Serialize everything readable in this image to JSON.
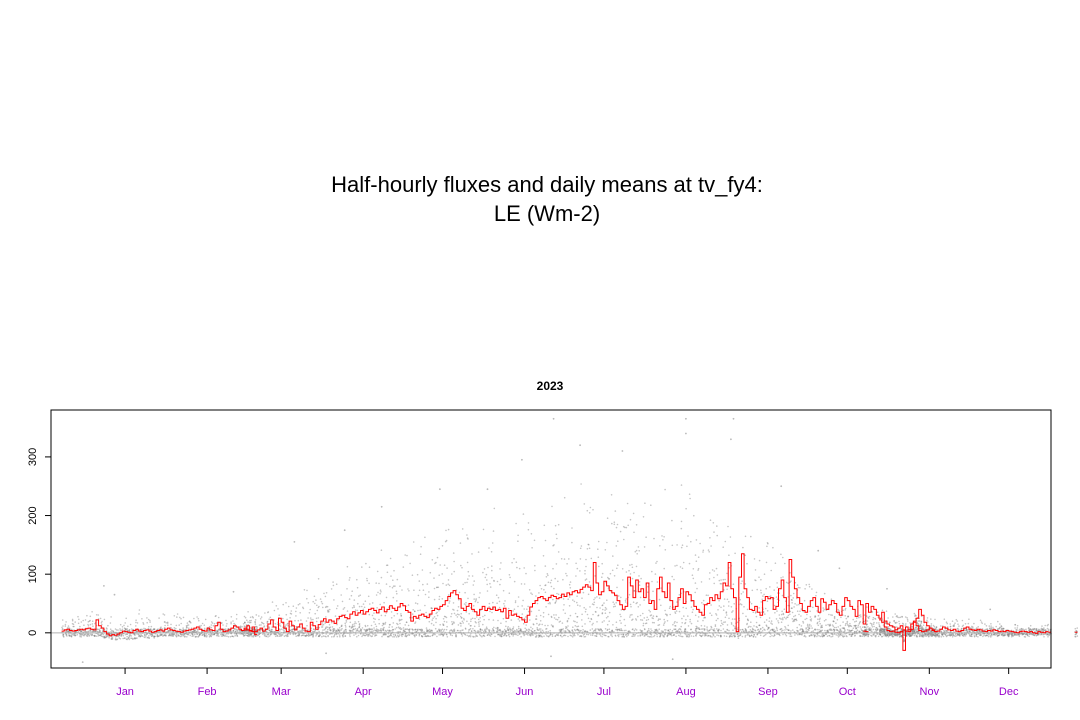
{
  "title_line1": "Half-hourly fluxes and daily means at tv_fy4:",
  "title_line2": "LE (Wm-2)",
  "chart_data": {
    "type": "scatter",
    "title": "2023",
    "xlabel": "",
    "ylabel": "",
    "xlim": [
      "2022-12-18",
      "2023-12-31"
    ],
    "ylim": [
      -60,
      380
    ],
    "y_ticks": [
      0,
      100,
      200,
      300
    ],
    "x_ticks": [
      {
        "label": "Jan",
        "date": "2023-01-15"
      },
      {
        "label": "Feb",
        "date": "2023-02-15"
      },
      {
        "label": "Mar",
        "date": "2023-03-15"
      },
      {
        "label": "Apr",
        "date": "2023-04-15"
      },
      {
        "label": "May",
        "date": "2023-05-15"
      },
      {
        "label": "Jun",
        "date": "2023-06-15"
      },
      {
        "label": "Jul",
        "date": "2023-07-15"
      },
      {
        "label": "Aug",
        "date": "2023-08-15"
      },
      {
        "label": "Sep",
        "date": "2023-09-15"
      },
      {
        "label": "Oct",
        "date": "2023-10-15"
      },
      {
        "label": "Nov",
        "date": "2023-11-15"
      },
      {
        "label": "Dec",
        "date": "2023-12-15"
      }
    ],
    "tick_label_color": "#9900cc",
    "zero_line": {
      "y": 0,
      "color": "#b0b0b0"
    },
    "series": [
      {
        "kind": "half_hourly_points",
        "color": "#7f7f7f",
        "envelope": [
          {
            "date": "2022-12-28",
            "low": -15,
            "high": 35
          },
          {
            "date": "2023-01-15",
            "low": -30,
            "high": 40
          },
          {
            "date": "2023-02-10",
            "low": -15,
            "high": 35
          },
          {
            "date": "2023-02-24",
            "low": -10,
            "high": 30
          },
          {
            "date": "2023-03-05",
            "low": -10,
            "high": 40
          },
          {
            "date": "2023-03-20",
            "low": -20,
            "high": 90
          },
          {
            "date": "2023-04-10",
            "low": -20,
            "high": 130
          },
          {
            "date": "2023-05-01",
            "low": -20,
            "high": 170
          },
          {
            "date": "2023-05-20",
            "low": -20,
            "high": 190
          },
          {
            "date": "2023-06-10",
            "low": -30,
            "high": 230
          },
          {
            "date": "2023-07-01",
            "low": -30,
            "high": 260
          },
          {
            "date": "2023-07-20",
            "low": -30,
            "high": 250
          },
          {
            "date": "2023-08-05",
            "low": -30,
            "high": 270
          },
          {
            "date": "2023-08-25",
            "low": -30,
            "high": 250
          },
          {
            "date": "2023-09-10",
            "low": -25,
            "high": 170
          },
          {
            "date": "2023-09-25",
            "low": -25,
            "high": 110
          },
          {
            "date": "2023-10-10",
            "low": -20,
            "high": 60
          },
          {
            "date": "2023-10-25",
            "low": -15,
            "high": 40
          },
          {
            "date": "2023-11-15",
            "low": -15,
            "high": 30
          },
          {
            "date": "2023-12-10",
            "low": -15,
            "high": 20
          },
          {
            "date": "2023-12-20",
            "low": -10,
            "high": 15
          }
        ],
        "outliers": [
          [
            "2023-01-07",
            80
          ],
          [
            "2023-01-11",
            65
          ],
          [
            "2023-02-25",
            70
          ],
          [
            "2023-03-20",
            155
          ],
          [
            "2023-04-08",
            175
          ],
          [
            "2023-04-22",
            215
          ],
          [
            "2023-05-14",
            245
          ],
          [
            "2023-06-01",
            245
          ],
          [
            "2023-06-14",
            295
          ],
          [
            "2023-06-26",
            365
          ],
          [
            "2023-07-06",
            320
          ],
          [
            "2023-07-22",
            310
          ],
          [
            "2023-08-15",
            365
          ],
          [
            "2023-08-15",
            340
          ],
          [
            "2023-09-02",
            365
          ],
          [
            "2023-09-01",
            330
          ],
          [
            "2023-09-20",
            250
          ],
          [
            "2023-10-04",
            140
          ],
          [
            "2023-10-12",
            110
          ],
          [
            "2023-10-30",
            75
          ],
          [
            "2023-12-08",
            40
          ],
          [
            "2023-04-01",
            -35
          ],
          [
            "2023-06-25",
            -40
          ],
          [
            "2023-08-10",
            -45
          ],
          [
            "2022-12-30",
            -50
          ]
        ]
      },
      {
        "kind": "daily_mean_step",
        "color": "#ff0000",
        "segments": [
          {
            "start": "2022-12-22",
            "values": [
              3,
              5,
              6,
              4,
              3,
              4,
              5,
              6,
              5,
              7,
              8,
              6,
              5,
              22,
              12,
              8,
              2,
              -2,
              -5,
              -3,
              -4,
              -2,
              0,
              3,
              2,
              1,
              0,
              4,
              6,
              3,
              2,
              4,
              5,
              3,
              1,
              2,
              4,
              5,
              3,
              6,
              8,
              5,
              4,
              3,
              2,
              1,
              3,
              4,
              5,
              6,
              8,
              10,
              6,
              4,
              3,
              8,
              5,
              4,
              12,
              18,
              6,
              2,
              3,
              5,
              8,
              12,
              10,
              6,
              4,
              8,
              5,
              3,
              2,
              -3
            ]
          },
          {
            "start": "2023-03-01",
            "values": [
              5,
              12,
              4,
              10,
              2,
              5,
              8,
              3,
              6,
              15,
              22,
              10,
              4,
              25,
              18,
              8,
              2,
              20,
              12,
              5,
              10,
              15,
              8,
              3,
              2,
              18,
              12,
              6,
              14,
              20,
              24,
              18,
              22,
              20,
              16,
              24,
              28,
              30,
              26,
              24,
              32,
              36,
              30,
              34,
              38,
              32,
              36,
              40,
              42,
              38,
              34,
              40,
              44,
              36,
              40,
              46,
              42,
              38,
              44,
              50,
              46,
              38,
              35,
              20,
              28,
              25,
              30,
              32,
              28,
              26,
              32,
              38,
              42,
              40,
              45,
              48,
              55,
              62,
              68,
              72,
              65,
              58,
              42,
              38,
              45,
              50,
              40,
              36,
              30,
              40,
              45,
              38,
              42,
              40,
              44,
              38,
              40,
              36,
              42,
              25,
              38,
              30,
              32,
              28,
              26,
              22,
              18,
              30,
              44,
              50,
              55,
              60,
              62,
              58,
              55,
              60,
              64,
              62,
              58,
              60,
              66,
              62,
              68,
              65,
              70,
              72,
              68,
              74,
              78,
              82,
              78,
              72,
              120,
              85,
              65,
              70,
              88,
              80,
              72,
              68,
              64,
              55,
              48,
              40,
              45,
              95,
              80,
              60,
              90,
              70,
              75,
              60,
              85,
              50,
              55,
              40,
              75,
              95,
              70,
              60,
              85,
              55,
              40,
              45,
              60,
              75,
              50,
              70,
              65,
              55,
              45,
              40,
              35,
              30,
              48,
              50,
              60,
              55,
              65,
              58,
              70,
              85,
              80,
              120,
              75,
              60,
              2,
              95,
              135,
              75,
              60,
              40,
              38,
              45,
              35,
              30,
              55,
              62,
              58,
              60,
              40,
              45,
              75,
              90,
              60,
              35,
              125,
              95,
              75,
              60,
              50,
              38,
              35,
              45,
              55,
              60,
              45,
              35,
              58,
              52,
              40,
              48,
              55,
              50,
              35,
              30,
              45,
              60,
              55,
              45,
              40,
              28,
              55,
              48,
              15,
              50,
              35,
              45,
              40,
              30,
              25,
              35,
              20,
              15,
              12,
              10,
              5,
              8,
              12,
              -30,
              10,
              5,
              15,
              20,
              25,
              40,
              30,
              18,
              12,
              8,
              5,
              2
            ]
          },
          {
            "start": "2023-10-21",
            "values": [
              3,
              2
            ]
          },
          {
            "start": "2023-10-27",
            "values": [
              22,
              18,
              10,
              4,
              2,
              3,
              1,
              0,
              2,
              5,
              3,
              2,
              6,
              18,
              12,
              4,
              2,
              3,
              5,
              8,
              4,
              2,
              3,
              6,
              10,
              8,
              5,
              4,
              6,
              3,
              2,
              4,
              8,
              10,
              6,
              5,
              4,
              6,
              5,
              3,
              2,
              4,
              3,
              5,
              4,
              2,
              3,
              2,
              4,
              3,
              2,
              1,
              0,
              2,
              3,
              2,
              1,
              2,
              0,
              -1,
              2,
              1,
              0,
              2
            ]
          },
          {
            "start": "2023-12-30",
            "values": [
              1
            ]
          },
          {
            "start": "2024-01-09",
            "values": [
              1
            ]
          }
        ]
      }
    ]
  }
}
